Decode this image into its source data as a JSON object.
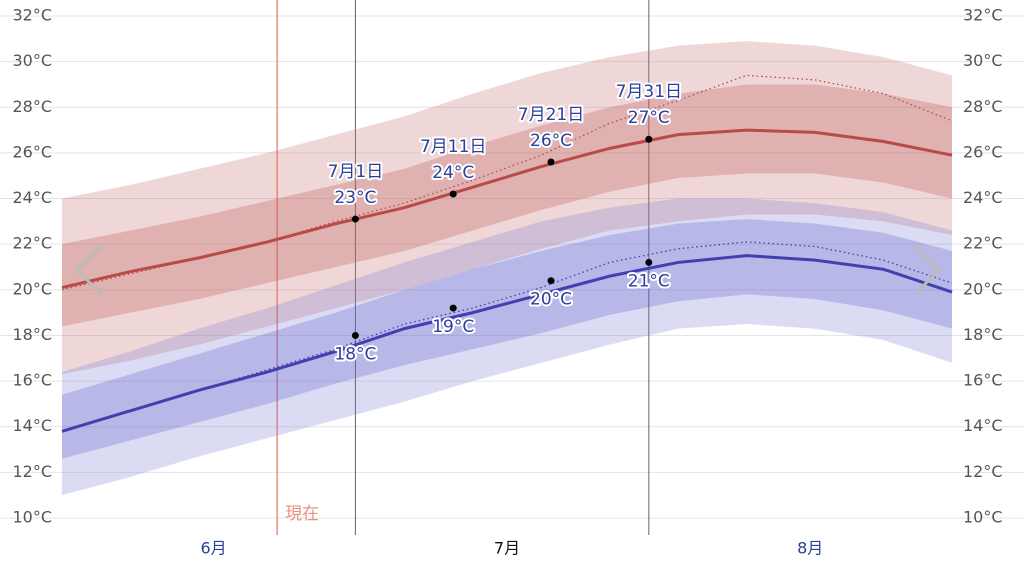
{
  "chart_data": {
    "type": "line",
    "x": [
      0,
      7,
      14,
      21,
      28,
      35,
      42,
      49,
      56,
      63,
      70,
      77,
      84,
      91
    ],
    "xlim": [
      0,
      91
    ],
    "xticks": [
      {
        "value": 15.5,
        "label": "6月"
      },
      {
        "value": 45.5,
        "label": "7月"
      },
      {
        "value": 76.5,
        "label": "8月"
      }
    ],
    "xtick_colors": [
      "#2a3f9e",
      "#111111",
      "#2a3f9e"
    ],
    "ylim": [
      10,
      32
    ],
    "yticks": [
      {
        "value": 10,
        "label": "10°C"
      },
      {
        "value": 12,
        "label": "12°C"
      },
      {
        "value": 14,
        "label": "14°C"
      },
      {
        "value": 16,
        "label": "16°C"
      },
      {
        "value": 18,
        "label": "18°C"
      },
      {
        "value": 20,
        "label": "20°C"
      },
      {
        "value": 22,
        "label": "22°C"
      },
      {
        "value": 24,
        "label": "24°C"
      },
      {
        "value": 26,
        "label": "26°C"
      },
      {
        "value": 28,
        "label": "28°C"
      },
      {
        "value": 30,
        "label": "30°C"
      },
      {
        "value": 32,
        "label": "32°C"
      }
    ],
    "grid": true,
    "bands": [
      {
        "color": "rgba(200,110,110,0.28)",
        "upper": [
          24.0,
          24.6,
          25.3,
          26.0,
          26.8,
          27.6,
          28.6,
          29.5,
          30.2,
          30.7,
          30.9,
          30.7,
          30.2,
          29.4
        ],
        "lower": [
          16.3,
          16.9,
          17.6,
          18.4,
          19.2,
          20.0,
          20.9,
          21.8,
          22.6,
          23.0,
          23.3,
          23.3,
          23.0,
          22.4
        ]
      },
      {
        "color": "rgba(190,90,90,0.30)",
        "upper": [
          22.0,
          22.6,
          23.2,
          23.9,
          24.6,
          25.3,
          26.3,
          27.2,
          28.0,
          28.6,
          29.0,
          29.0,
          28.6,
          28.0
        ],
        "lower": [
          18.4,
          19.0,
          19.6,
          20.3,
          21.0,
          21.7,
          22.6,
          23.5,
          24.3,
          24.9,
          25.1,
          25.1,
          24.7,
          24.0
        ]
      },
      {
        "color": "rgba(110,110,210,0.25)",
        "upper": [
          16.4,
          17.3,
          18.3,
          19.2,
          20.2,
          21.2,
          22.1,
          23.0,
          23.6,
          24.0,
          24.0,
          23.8,
          23.4,
          22.6
        ],
        "lower": [
          11.0,
          11.8,
          12.7,
          13.5,
          14.3,
          15.1,
          16.0,
          16.8,
          17.6,
          18.3,
          18.5,
          18.3,
          17.8,
          16.8
        ]
      },
      {
        "color": "rgba(90,90,200,0.28)",
        "upper": [
          15.4,
          16.3,
          17.2,
          18.1,
          19.0,
          20.0,
          20.9,
          21.7,
          22.4,
          22.9,
          23.1,
          22.9,
          22.5,
          21.7
        ],
        "lower": [
          12.6,
          13.4,
          14.2,
          15.0,
          15.9,
          16.7,
          17.4,
          18.1,
          18.9,
          19.5,
          19.8,
          19.6,
          19.1,
          18.3
        ]
      }
    ],
    "series": [
      {
        "color": "#b84a48",
        "dash": true,
        "values": [
          20.0,
          20.7,
          21.4,
          22.1,
          23.0,
          23.8,
          24.8,
          25.9,
          27.3,
          28.3,
          29.4,
          29.2,
          28.6,
          27.4
        ]
      },
      {
        "color": "#b84a48",
        "dash": false,
        "values": [
          20.1,
          20.8,
          21.4,
          22.1,
          22.9,
          23.6,
          24.5,
          25.4,
          26.2,
          26.8,
          27.0,
          26.9,
          26.5,
          25.9
        ]
      },
      {
        "color": "#4040b0",
        "dash": true,
        "values": [
          13.8,
          14.7,
          15.6,
          16.5,
          17.4,
          18.5,
          19.2,
          20.1,
          21.2,
          21.8,
          22.1,
          21.9,
          21.3,
          20.3
        ]
      },
      {
        "color": "#4040b0",
        "dash": false,
        "values": [
          13.8,
          14.7,
          15.6,
          16.4,
          17.3,
          18.3,
          19.0,
          19.8,
          20.6,
          21.2,
          21.5,
          21.3,
          20.9,
          19.9
        ]
      }
    ],
    "now": {
      "x": 22,
      "label": "現在",
      "color": "#e8927e"
    },
    "annotations": [
      {
        "x": 30,
        "label": "7月1日",
        "guide": true,
        "high": 23.1,
        "high_label": "23°C",
        "low": 18.0,
        "low_label": "18°C"
      },
      {
        "x": 40,
        "label": "7月11日",
        "guide": false,
        "high": 24.2,
        "high_label": "24°C",
        "low": 19.2,
        "low_label": "19°C"
      },
      {
        "x": 50,
        "label": "7月21日",
        "guide": false,
        "high": 25.6,
        "high_label": "26°C",
        "low": 20.4,
        "low_label": "20°C"
      },
      {
        "x": 60,
        "label": "7月31日",
        "guide": true,
        "high": 26.6,
        "high_label": "27°C",
        "low": 21.2,
        "low_label": "21°C"
      }
    ]
  }
}
